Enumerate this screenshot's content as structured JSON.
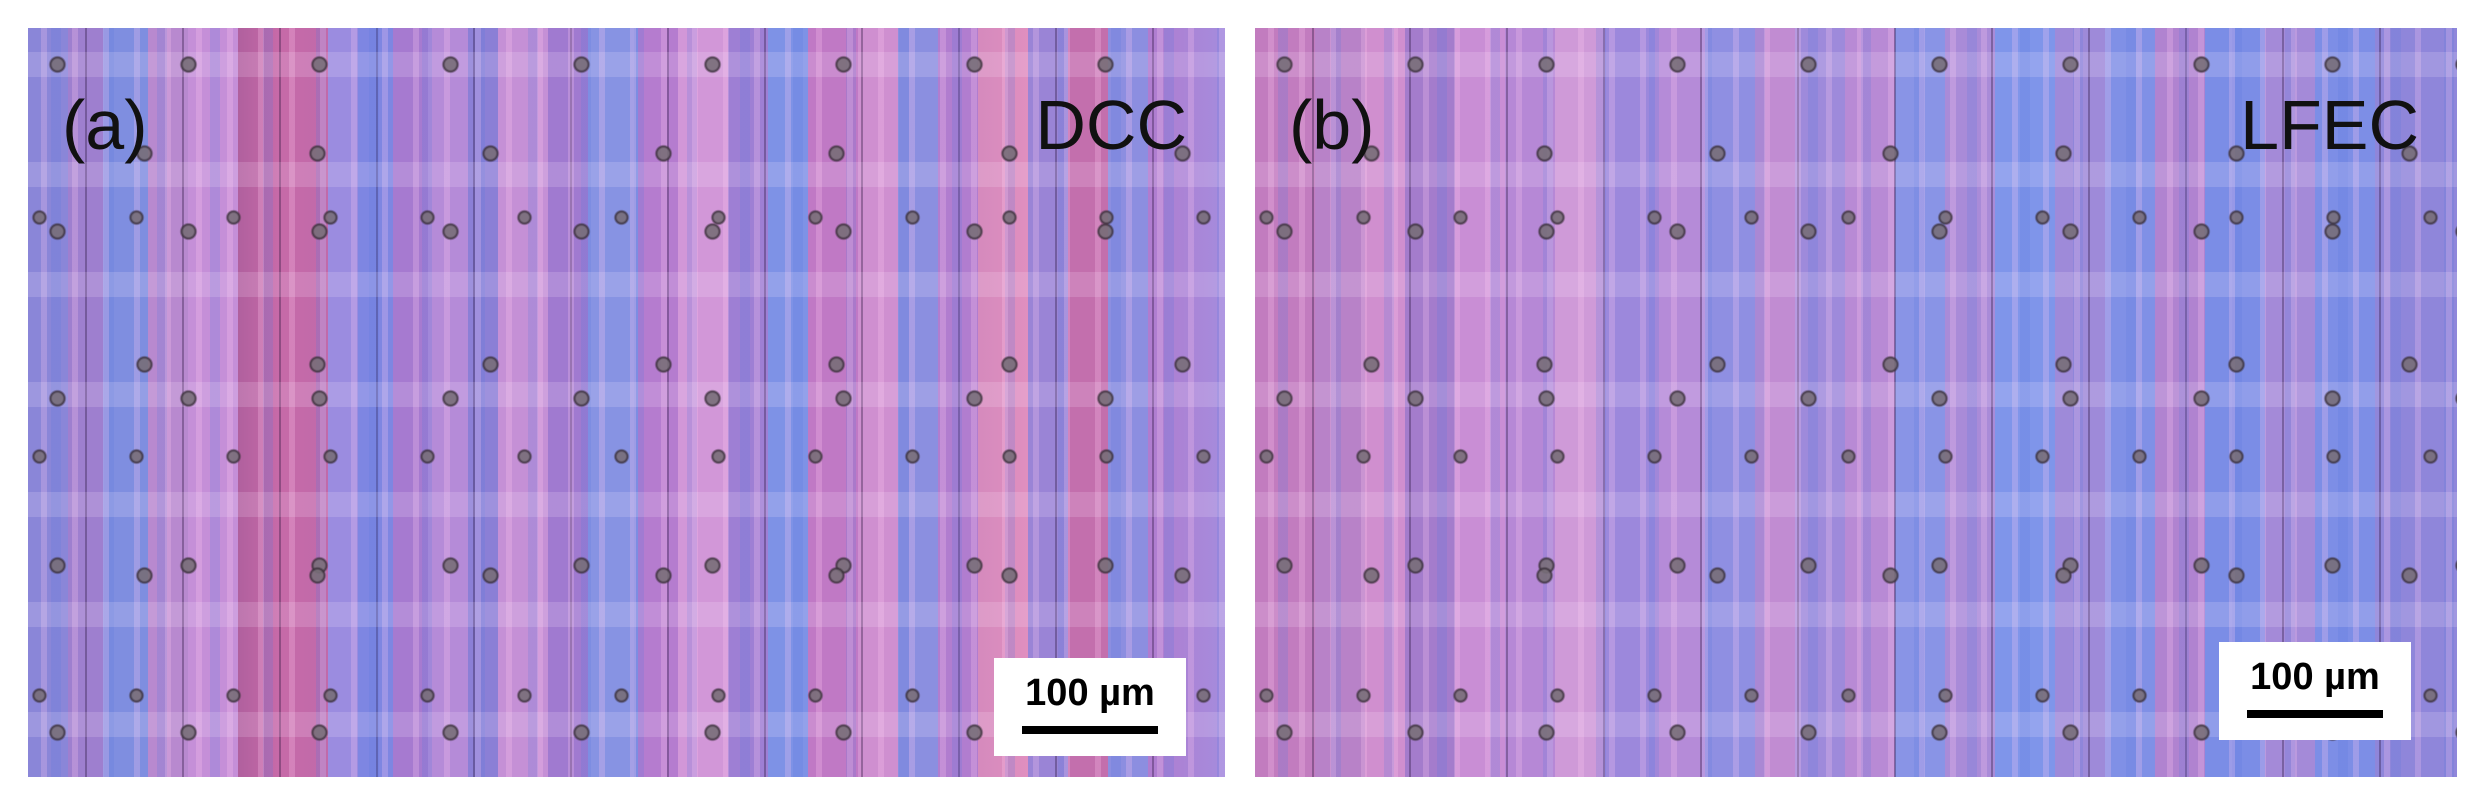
{
  "panels": [
    {
      "label": "(a)",
      "method": "DCC",
      "scale_bar": "100 µm"
    },
    {
      "label": "(b)",
      "method": "LFEC",
      "scale_bar": "100 µm"
    }
  ]
}
